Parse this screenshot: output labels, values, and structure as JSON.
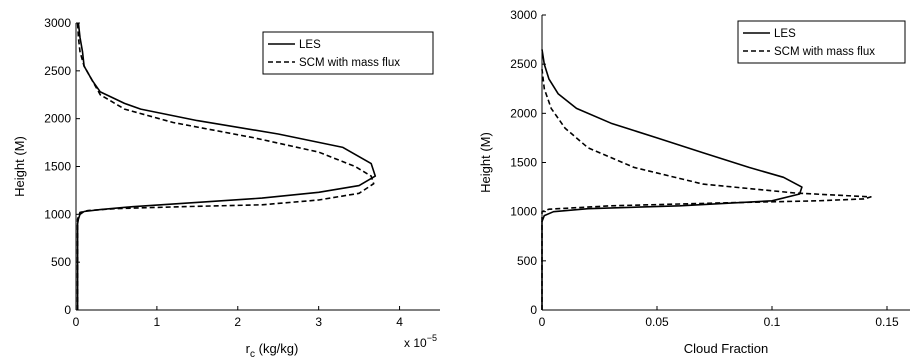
{
  "chart_data": [
    {
      "type": "line",
      "xlabel_main": "r",
      "xlabel_sub": "c",
      "xlabel_rest": " (kg/kg)",
      "ylabel": "Height (M)",
      "exponent_base": "x 10",
      "exponent_power": "−5",
      "xlim": [
        0,
        4.5
      ],
      "ylim": [
        0,
        3000
      ],
      "xticks": [
        0,
        1,
        2,
        3,
        4
      ],
      "xtick_labels": [
        "0",
        "1",
        "2",
        "3",
        "4"
      ],
      "yticks": [
        0,
        500,
        1000,
        1500,
        2000,
        2500,
        3000
      ],
      "ytick_labels": [
        "0",
        "500",
        "1000",
        "1500",
        "2000",
        "2500",
        "3000"
      ],
      "grid": false,
      "legend_position": "top-right",
      "series": [
        {
          "name": "LES",
          "style": "solid",
          "x": [
            0.02,
            0.02,
            0.02,
            0.03,
            0.05,
            0.1,
            0.3,
            0.7,
            1.4,
            2.3,
            3.0,
            3.5,
            3.7,
            3.65,
            3.3,
            2.5,
            1.5,
            0.8,
            0.6,
            0.5,
            0.3,
            0.2,
            0.1,
            0.08,
            0.05,
            0.03
          ],
          "y": [
            0,
            500,
            900,
            950,
            1000,
            1030,
            1050,
            1080,
            1120,
            1170,
            1230,
            1300,
            1400,
            1530,
            1700,
            1840,
            1980,
            2100,
            2160,
            2200,
            2280,
            2400,
            2550,
            2700,
            2850,
            3000
          ]
        },
        {
          "name": "SCM with mass flux",
          "style": "dashed",
          "x": [
            0.02,
            0.02,
            0.05,
            0.15,
            0.5,
            1.3,
            2.3,
            3.0,
            3.5,
            3.68,
            3.65,
            3.45,
            3.0,
            2.2,
            1.2,
            0.6,
            0.3,
            0.2,
            0.1,
            0.05,
            0.03,
            0.02
          ],
          "y": [
            0,
            950,
            1020,
            1040,
            1060,
            1080,
            1100,
            1150,
            1220,
            1320,
            1400,
            1500,
            1650,
            1800,
            1960,
            2100,
            2250,
            2400,
            2550,
            2700,
            2850,
            3000
          ]
        }
      ]
    },
    {
      "type": "line",
      "xlabel": "Cloud Fraction",
      "ylabel": "Height (M)",
      "xlim": [
        0,
        0.16
      ],
      "ylim": [
        0,
        3000
      ],
      "xticks": [
        0,
        0.05,
        0.1,
        0.15
      ],
      "xtick_labels": [
        "0",
        "0.05",
        "0.1",
        "0.15"
      ],
      "yticks": [
        0,
        500,
        1000,
        1500,
        2000,
        2500,
        3000
      ],
      "ytick_labels": [
        "0",
        "500",
        "1000",
        "1500",
        "2000",
        "2500",
        "3000"
      ],
      "grid": false,
      "legend_position": "top-right",
      "series": [
        {
          "name": "LES",
          "style": "solid",
          "x": [
            0.0,
            0.0,
            0.001,
            0.005,
            0.02,
            0.06,
            0.1,
            0.112,
            0.113,
            0.105,
            0.09,
            0.07,
            0.05,
            0.03,
            0.015,
            0.007,
            0.003,
            0.001,
            0.0
          ],
          "y": [
            0,
            900,
            960,
            1000,
            1030,
            1060,
            1110,
            1180,
            1250,
            1350,
            1450,
            1600,
            1750,
            1900,
            2050,
            2200,
            2350,
            2500,
            2650
          ]
        },
        {
          "name": "SCM with mass flux",
          "style": "dashed",
          "x": [
            0.0,
            0.0,
            0.003,
            0.03,
            0.08,
            0.12,
            0.14,
            0.143,
            0.11,
            0.07,
            0.04,
            0.02,
            0.01,
            0.004,
            0.001,
            0.0
          ],
          "y": [
            0,
            1000,
            1025,
            1060,
            1090,
            1110,
            1130,
            1150,
            1190,
            1280,
            1450,
            1650,
            1850,
            2050,
            2250,
            2450
          ]
        }
      ]
    }
  ]
}
